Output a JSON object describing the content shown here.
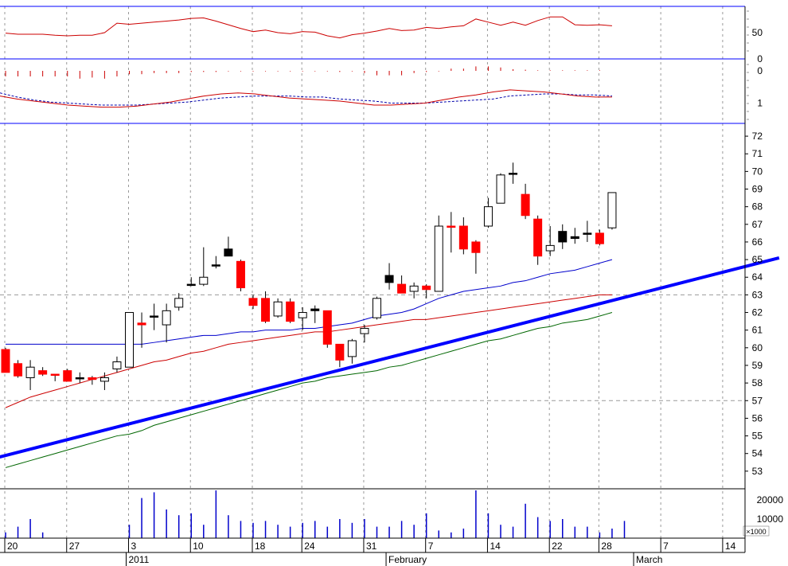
{
  "chart_data": {
    "type": "candlestick",
    "colors": {
      "up_body": "#ffffff",
      "down_body": "#ff0000",
      "black_body": "#000000",
      "wick": "#000000",
      "trendline": "#0000ff",
      "bollinger_upper": "#0000cc",
      "bollinger_lower": "#cc0000",
      "ma_long": "#006600",
      "rsi": "#cc0000",
      "histogram": "#cc0000",
      "macd": "#cc0000",
      "signal": "#0000aa",
      "volume": "#0000cc",
      "grid": "#999999"
    },
    "x_axis": {
      "day_labels": [
        {
          "label": "20",
          "idx": 0
        },
        {
          "label": "27",
          "idx": 5
        },
        {
          "label": "3",
          "idx": 10
        },
        {
          "label": "10",
          "idx": 15
        },
        {
          "label": "18",
          "idx": 20
        },
        {
          "label": "24",
          "idx": 24
        },
        {
          "label": "31",
          "idx": 29
        },
        {
          "label": "7",
          "idx": 34
        },
        {
          "label": "14",
          "idx": 39
        },
        {
          "label": "22",
          "idx": 44
        },
        {
          "label": "28",
          "idx": 48
        },
        {
          "label": "7",
          "idx": 53
        },
        {
          "label": "14",
          "idx": 58
        }
      ],
      "month_labels": [
        {
          "label": "2011",
          "idx": 10
        },
        {
          "label": "February",
          "idx": 31
        },
        {
          "label": "March",
          "idx": 51
        }
      ]
    },
    "price_panel": {
      "y_range": [
        52,
        72.5
      ],
      "y_ticks": [
        53,
        54,
        55,
        56,
        57,
        58,
        59,
        60,
        61,
        62,
        63,
        64,
        65,
        66,
        67,
        68,
        69,
        70,
        71,
        72
      ],
      "dashed_levels": [
        57,
        63
      ],
      "candles": [
        {
          "o": 59.9,
          "h": 60.0,
          "l": 58.6,
          "c": 58.6,
          "color": "red"
        },
        {
          "o": 59.1,
          "h": 59.3,
          "l": 58.3,
          "c": 58.4,
          "color": "red"
        },
        {
          "o": 58.3,
          "h": 59.3,
          "l": 57.6,
          "c": 58.9,
          "color": "white"
        },
        {
          "o": 58.7,
          "h": 58.9,
          "l": 58.4,
          "c": 58.5,
          "color": "red"
        },
        {
          "o": 58.5,
          "h": 58.5,
          "l": 58.1,
          "c": 58.5,
          "color": "red"
        },
        {
          "o": 58.7,
          "h": 58.8,
          "l": 58.1,
          "c": 58.1,
          "color": "red"
        },
        {
          "o": 58.3,
          "h": 58.6,
          "l": 58.0,
          "c": 58.3,
          "color": "black"
        },
        {
          "o": 58.3,
          "h": 58.4,
          "l": 57.9,
          "c": 58.2,
          "color": "red"
        },
        {
          "o": 58.1,
          "h": 58.6,
          "l": 57.6,
          "c": 58.3,
          "color": "white"
        },
        {
          "o": 58.8,
          "h": 59.5,
          "l": 58.6,
          "c": 59.2,
          "color": "white"
        },
        {
          "o": 58.9,
          "h": 62.0,
          "l": 58.9,
          "c": 62.0,
          "color": "white"
        },
        {
          "o": 61.3,
          "h": 62.0,
          "l": 60.0,
          "c": 61.4,
          "color": "red"
        },
        {
          "o": 61.8,
          "h": 62.5,
          "l": 61.0,
          "c": 61.8,
          "color": "black"
        },
        {
          "o": 61.3,
          "h": 62.5,
          "l": 60.3,
          "c": 62.1,
          "color": "white"
        },
        {
          "o": 62.3,
          "h": 63.1,
          "l": 62.1,
          "c": 62.8,
          "color": "white"
        },
        {
          "o": 63.6,
          "h": 64.0,
          "l": 63.5,
          "c": 63.6,
          "color": "black"
        },
        {
          "o": 63.6,
          "h": 65.7,
          "l": 63.5,
          "c": 64.0,
          "color": "white"
        },
        {
          "o": 64.7,
          "h": 65.2,
          "l": 64.5,
          "c": 64.7,
          "color": "black"
        },
        {
          "o": 65.6,
          "h": 66.3,
          "l": 65.2,
          "c": 65.2,
          "color": "black"
        },
        {
          "o": 64.9,
          "h": 65.0,
          "l": 63.2,
          "c": 63.4,
          "color": "red"
        },
        {
          "o": 62.8,
          "h": 63.0,
          "l": 62.2,
          "c": 62.4,
          "color": "red"
        },
        {
          "o": 62.8,
          "h": 63.2,
          "l": 61.4,
          "c": 61.5,
          "color": "red"
        },
        {
          "o": 61.8,
          "h": 62.8,
          "l": 61.7,
          "c": 62.6,
          "color": "white"
        },
        {
          "o": 62.6,
          "h": 62.8,
          "l": 61.4,
          "c": 61.5,
          "color": "red"
        },
        {
          "o": 61.7,
          "h": 62.3,
          "l": 61.0,
          "c": 62.0,
          "color": "white"
        },
        {
          "o": 62.2,
          "h": 62.4,
          "l": 61.4,
          "c": 62.1,
          "color": "black"
        },
        {
          "o": 62.1,
          "h": 62.1,
          "l": 60.0,
          "c": 60.2,
          "color": "red"
        },
        {
          "o": 60.2,
          "h": 60.2,
          "l": 58.9,
          "c": 59.3,
          "color": "red"
        },
        {
          "o": 59.5,
          "h": 60.5,
          "l": 59.1,
          "c": 60.4,
          "color": "white"
        },
        {
          "o": 60.8,
          "h": 61.3,
          "l": 60.3,
          "c": 61.1,
          "color": "white"
        },
        {
          "o": 61.7,
          "h": 62.9,
          "l": 61.6,
          "c": 62.8,
          "color": "white"
        },
        {
          "o": 64.1,
          "h": 64.8,
          "l": 63.3,
          "c": 63.7,
          "color": "black"
        },
        {
          "o": 63.6,
          "h": 64.1,
          "l": 63.1,
          "c": 63.1,
          "color": "red"
        },
        {
          "o": 63.2,
          "h": 63.7,
          "l": 62.8,
          "c": 63.5,
          "color": "white"
        },
        {
          "o": 63.5,
          "h": 63.6,
          "l": 62.8,
          "c": 63.3,
          "color": "red"
        },
        {
          "o": 63.2,
          "h": 67.5,
          "l": 63.2,
          "c": 66.9,
          "color": "white"
        },
        {
          "o": 66.9,
          "h": 67.7,
          "l": 65.4,
          "c": 66.9,
          "color": "red"
        },
        {
          "o": 66.9,
          "h": 67.4,
          "l": 65.3,
          "c": 65.6,
          "color": "red"
        },
        {
          "o": 66.0,
          "h": 66.1,
          "l": 64.2,
          "c": 65.4,
          "color": "red"
        },
        {
          "o": 66.9,
          "h": 68.5,
          "l": 66.8,
          "c": 68.0,
          "color": "white"
        },
        {
          "o": 68.2,
          "h": 69.9,
          "l": 68.2,
          "c": 69.8,
          "color": "white"
        },
        {
          "o": 69.9,
          "h": 70.5,
          "l": 69.3,
          "c": 69.9,
          "color": "black"
        },
        {
          "o": 68.7,
          "h": 69.3,
          "l": 67.3,
          "c": 67.5,
          "color": "red"
        },
        {
          "o": 67.3,
          "h": 67.5,
          "l": 64.7,
          "c": 65.2,
          "color": "red"
        },
        {
          "o": 65.5,
          "h": 66.9,
          "l": 65.2,
          "c": 65.8,
          "color": "white"
        },
        {
          "o": 66.6,
          "h": 67.0,
          "l": 65.6,
          "c": 66.0,
          "color": "black"
        },
        {
          "o": 66.2,
          "h": 66.8,
          "l": 65.9,
          "c": 66.3,
          "color": "black"
        },
        {
          "o": 66.5,
          "h": 67.2,
          "l": 66.0,
          "c": 66.5,
          "color": "black"
        },
        {
          "o": 66.5,
          "h": 66.7,
          "l": 65.8,
          "c": 65.9,
          "color": "red"
        },
        {
          "o": 66.8,
          "h": 68.8,
          "l": 66.7,
          "c": 68.8,
          "color": "white"
        }
      ],
      "bollinger_upper": [
        60.2,
        60.2,
        60.2,
        60.2,
        60.2,
        60.2,
        60.2,
        60.2,
        60.2,
        60.2,
        60.2,
        60.2,
        60.3,
        60.4,
        60.5,
        60.6,
        60.7,
        60.7,
        60.8,
        60.9,
        60.9,
        61.0,
        61.0,
        61.0,
        61.1,
        61.1,
        61.2,
        61.3,
        61.4,
        61.6,
        61.8,
        61.9,
        62.0,
        62.2,
        62.5,
        62.8,
        63.0,
        63.2,
        63.3,
        63.4,
        63.5,
        63.7,
        63.8,
        64.0,
        64.2,
        64.3,
        64.4,
        64.6,
        64.8,
        65.0
      ],
      "bollinger_lower": [
        56.6,
        56.9,
        57.2,
        57.4,
        57.6,
        57.8,
        58.0,
        58.2,
        58.4,
        58.6,
        58.8,
        59.0,
        59.2,
        59.3,
        59.5,
        59.7,
        59.8,
        60.0,
        60.2,
        60.3,
        60.4,
        60.5,
        60.6,
        60.7,
        60.8,
        60.9,
        60.9,
        61.0,
        61.1,
        61.2,
        61.3,
        61.4,
        61.5,
        61.6,
        61.6,
        61.7,
        61.8,
        61.9,
        62.0,
        62.1,
        62.2,
        62.3,
        62.4,
        62.5,
        62.6,
        62.7,
        62.8,
        62.9,
        63.0,
        63.0
      ],
      "ma_long": [
        53.2,
        53.4,
        53.6,
        53.8,
        54.0,
        54.2,
        54.4,
        54.6,
        54.8,
        55.0,
        55.1,
        55.3,
        55.6,
        55.8,
        56.0,
        56.2,
        56.4,
        56.6,
        56.8,
        57.0,
        57.2,
        57.4,
        57.6,
        57.8,
        58.0,
        58.1,
        58.3,
        58.4,
        58.5,
        58.6,
        58.7,
        58.9,
        59.0,
        59.2,
        59.4,
        59.6,
        59.8,
        60.0,
        60.2,
        60.4,
        60.5,
        60.7,
        60.9,
        61.1,
        61.2,
        61.4,
        61.5,
        61.6,
        61.8,
        62.0
      ],
      "trendline": {
        "x0": -0.5,
        "y0": 53.8,
        "x1": 62.5,
        "y1": 65.1
      }
    },
    "rsi_panel": {
      "y_range": [
        0,
        100
      ],
      "y_ticks": [
        0,
        50
      ],
      "values": [
        49,
        47,
        47,
        47,
        45,
        44,
        45,
        45,
        50,
        68,
        66,
        68,
        70,
        72,
        74,
        77,
        78,
        72,
        65,
        58,
        52,
        55,
        50,
        48,
        52,
        51,
        44,
        40,
        46,
        49,
        53,
        58,
        54,
        55,
        60,
        58,
        61,
        63,
        76,
        70,
        64,
        70,
        64,
        73,
        80,
        80,
        65,
        64,
        65,
        63
      ]
    },
    "histogram_panel": {
      "y_range": [
        -1,
        1
      ],
      "y_ticks": [
        0
      ],
      "values": [
        -0.5,
        -0.5,
        -0.5,
        -0.5,
        -0.5,
        -0.5,
        -0.7,
        -0.6,
        -0.7,
        -0.5,
        -0.3,
        -0.3,
        -0.2,
        -0.2,
        -0.2,
        -0.1,
        -0.1,
        -0.1,
        -0.05,
        -0.05,
        -0.05,
        -0.05,
        -0.05,
        -0.05,
        -0.05,
        -0.05,
        -0.05,
        -0.1,
        -0.05,
        -0.2,
        -0.4,
        -0.4,
        -0.4,
        -0.2,
        -0.1,
        -0.05,
        0.2,
        0.2,
        0.4,
        0.4,
        0.3,
        0.15,
        0.1,
        0.05,
        0.05,
        0.05,
        0.05,
        0.05,
        0.05,
        0.0
      ]
    },
    "macd_panel": {
      "y_range": [
        0,
        2
      ],
      "y_ticks": [
        1
      ],
      "macd": [
        1.35,
        1.2,
        1.1,
        1.0,
        0.9,
        0.85,
        0.8,
        0.8,
        0.85,
        0.95,
        1.05,
        1.2,
        1.35,
        1.45,
        1.5,
        1.45,
        1.35,
        1.25,
        1.2,
        1.15,
        1.1,
        1.0,
        0.9,
        0.9,
        0.95,
        1.0,
        1.15,
        1.3,
        1.4,
        1.55,
        1.65,
        1.6,
        1.55,
        1.45,
        1.35,
        1.3,
        1.3
      ],
      "signal": [
        1.5,
        1.3,
        1.15,
        1.05,
        1.0,
        0.95,
        0.9,
        0.9,
        0.9,
        0.95,
        1.0,
        1.05,
        1.15,
        1.25,
        1.3,
        1.35,
        1.35,
        1.35,
        1.3,
        1.3,
        1.2,
        1.15,
        1.1,
        1.0,
        1.0,
        1.0,
        1.05,
        1.1,
        1.15,
        1.2,
        1.35,
        1.4,
        1.45,
        1.45,
        1.4,
        1.4,
        1.35
      ]
    },
    "volume_panel": {
      "y_range": [
        0,
        25000
      ],
      "y_ticks": [
        {
          "value": 10000,
          "label": "10000"
        },
        {
          "value": 20000,
          "label": "20000"
        }
      ],
      "unit_label": "×1000",
      "values": [
        3000,
        6000,
        10000,
        3000,
        0,
        0,
        0,
        0,
        0,
        0,
        7000,
        21000,
        24000,
        15000,
        12000,
        13000,
        7000,
        25000,
        12000,
        9000,
        8000,
        9000,
        7000,
        6000,
        8000,
        9000,
        6000,
        10000,
        8000,
        10000,
        6000,
        6000,
        9000,
        7000,
        13000,
        4000,
        3000,
        5000,
        25000,
        13000,
        7000,
        6000,
        18000,
        11000,
        9000,
        10000,
        6000,
        6000,
        3000,
        5000,
        9000
      ]
    }
  }
}
